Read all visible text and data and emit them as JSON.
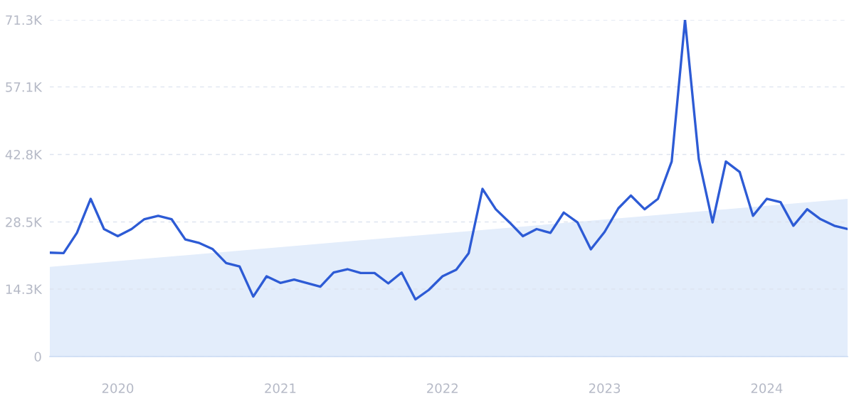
{
  "chart_data": {
    "type": "line",
    "x": [
      "2019-08",
      "2019-09",
      "2019-10",
      "2019-11",
      "2019-12",
      "2020-01",
      "2020-02",
      "2020-03",
      "2020-04",
      "2020-05",
      "2020-06",
      "2020-07",
      "2020-08",
      "2020-09",
      "2020-10",
      "2020-11",
      "2020-12",
      "2021-01",
      "2021-02",
      "2021-03",
      "2021-04",
      "2021-05",
      "2021-06",
      "2021-07",
      "2021-08",
      "2021-09",
      "2021-10",
      "2021-11",
      "2021-12",
      "2022-01",
      "2022-02",
      "2022-03",
      "2022-04",
      "2022-05",
      "2022-06",
      "2022-07",
      "2022-08",
      "2022-09",
      "2022-10",
      "2022-11",
      "2022-12",
      "2023-01",
      "2023-02",
      "2023-03",
      "2023-04",
      "2023-05",
      "2023-06",
      "2023-07",
      "2023-08",
      "2023-09",
      "2023-10",
      "2023-11",
      "2023-12",
      "2024-01",
      "2024-02",
      "2024-03",
      "2024-04",
      "2024-05",
      "2024-06",
      "2024-07"
    ],
    "series": [
      {
        "type": "area",
        "color": "#e3edfb",
        "x": [
          "2019-08",
          "2024-07"
        ],
        "values": [
          19000,
          33400
        ]
      },
      {
        "color": "#2d5bd5",
        "values": [
          22000,
          21900,
          26200,
          33400,
          27000,
          25500,
          27000,
          29100,
          29800,
          29100,
          24800,
          24100,
          22800,
          19800,
          19100,
          12700,
          17000,
          15600,
          16300,
          15600,
          14800,
          17800,
          18500,
          17700,
          17700,
          15500,
          17800,
          12100,
          14100,
          17000,
          18400,
          21900,
          35500,
          31200,
          28400,
          25500,
          27000,
          26200,
          30500,
          28400,
          22700,
          26400,
          31400,
          34100,
          31200,
          33400,
          41300,
          71300,
          41800,
          28400,
          41300,
          39100,
          29800,
          33400,
          32700,
          27700,
          31200,
          29100,
          27700,
          27000
        ]
      }
    ],
    "xlim": [
      "2019-08",
      "2024-07"
    ],
    "xticks": [
      "2020",
      "2021",
      "2022",
      "2023",
      "2024"
    ],
    "ylim": [
      0,
      71300
    ],
    "yticks": [
      0,
      {
        "value": 14300,
        "label": "14.3K"
      },
      {
        "value": 28500,
        "label": "28.5K"
      },
      {
        "value": 42800,
        "label": "42.8K"
      },
      {
        "value": 57100,
        "label": "57.1K"
      },
      {
        "value": 71300,
        "label": "71.3K"
      }
    ],
    "grid": "y"
  }
}
